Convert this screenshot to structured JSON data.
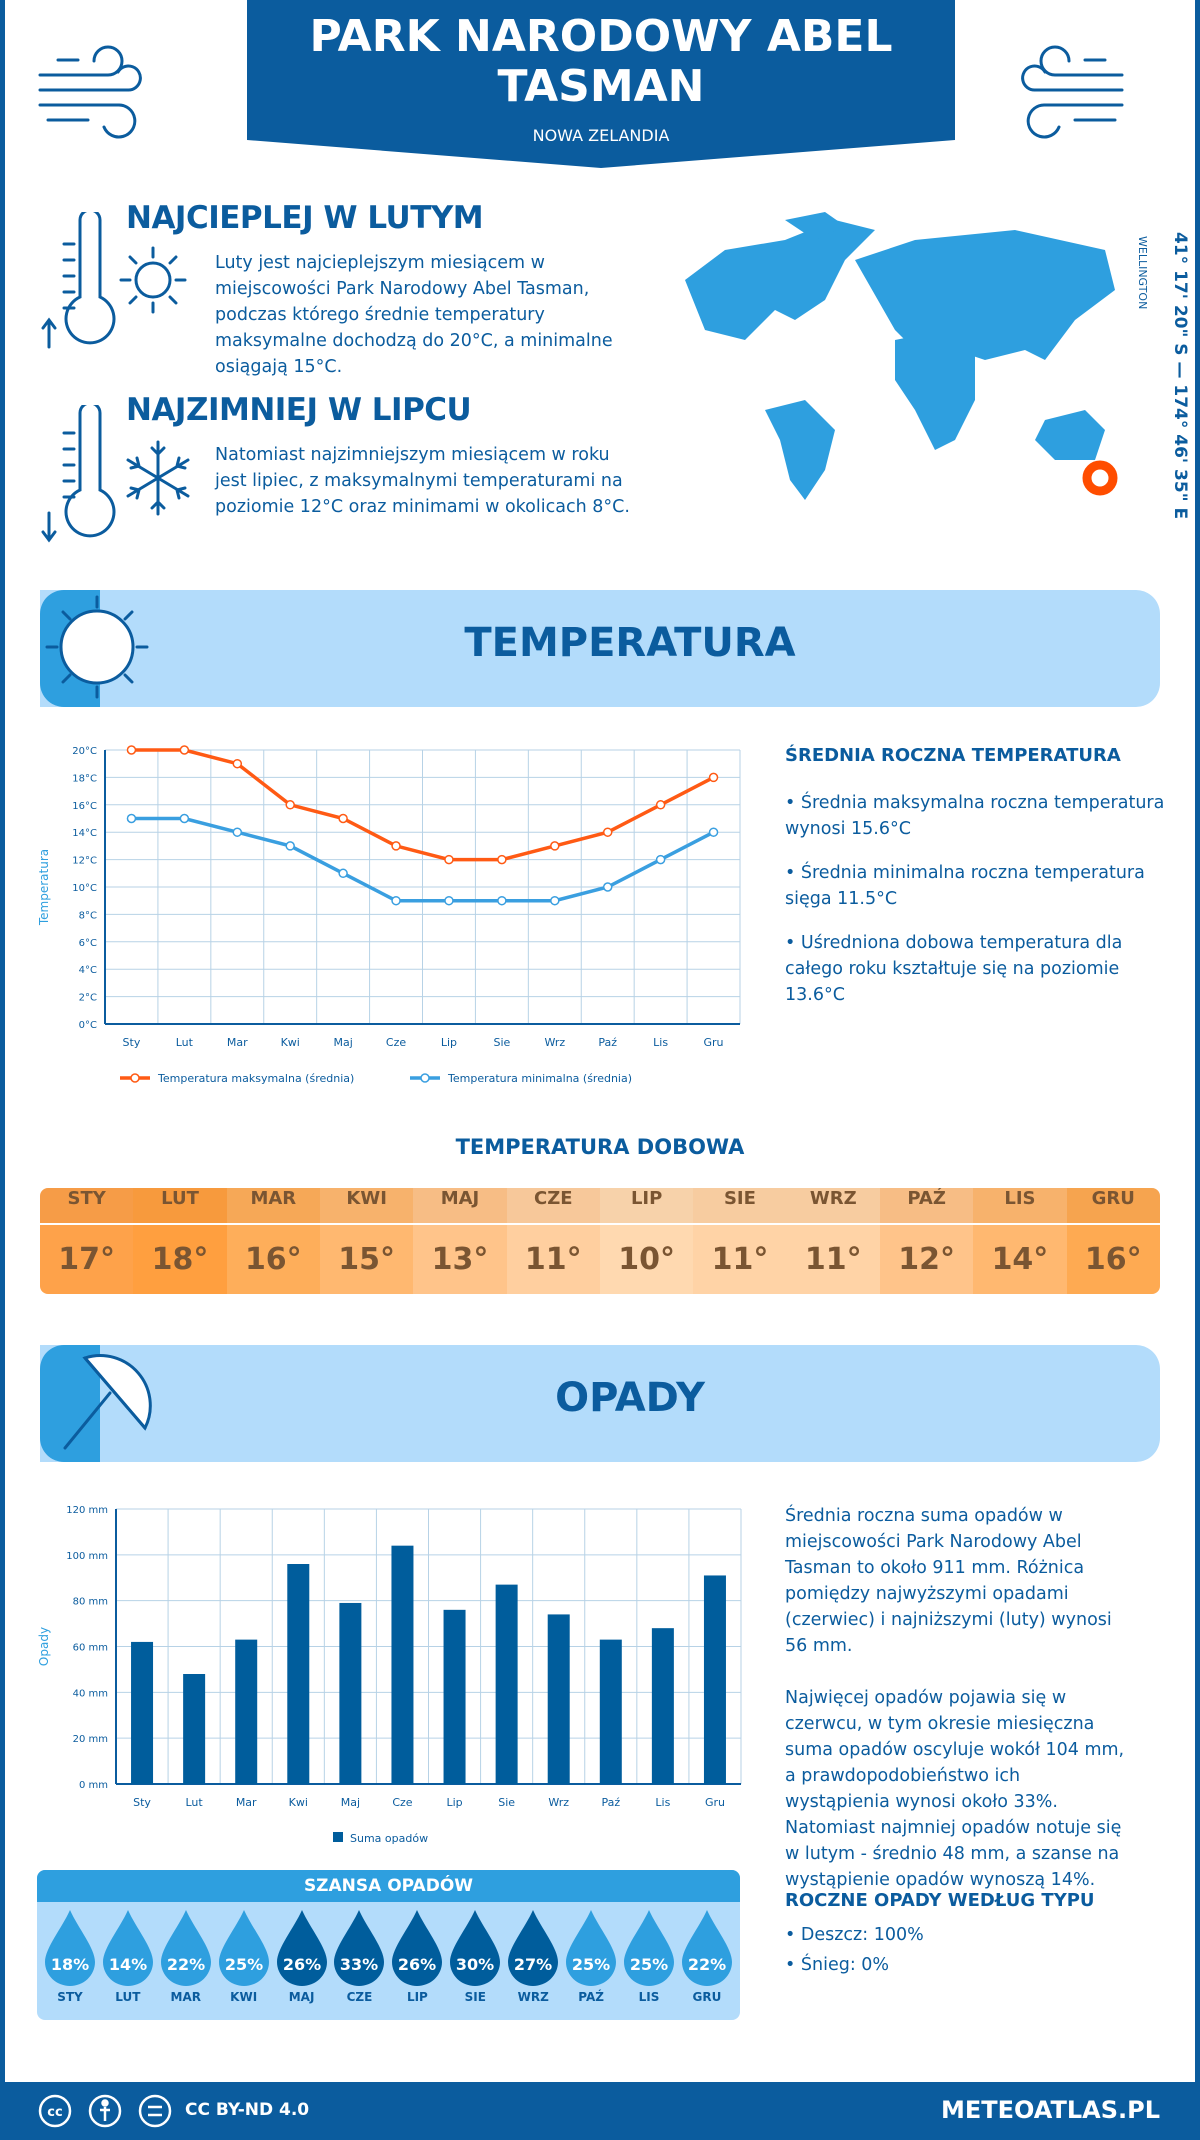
{
  "header": {
    "title": "PARK NARODOWY ABEL TASMAN",
    "subtitle": "NOWA ZELANDIA"
  },
  "warmest": {
    "heading": "NAJCIEPLEJ W LUTYM",
    "text": "Luty jest najcieplejszym miesiącem w miejscowości Park Narodowy Abel Tasman, podczas którego średnie temperatury maksymalne dochodzą do 20°C, a minimalne osiągają 15°C."
  },
  "coldest": {
    "heading": "NAJZIMNIEJ W LIPCU",
    "text": "Natomiast najzimniejszym miesiącem w roku jest lipiec, z maksymalnymi temperaturami na poziomie 12°C oraz minimami w okolicach 8°C."
  },
  "map": {
    "coordinates": "41° 17' 20\" S — 174° 46' 35\" E",
    "city": "WELLINGTON",
    "marker_color": "#ff4d00"
  },
  "temperature": {
    "band_title": "TEMPERATURA",
    "summary_heading": "ŚREDNIA ROCZNA TEMPERATURA",
    "bullets": [
      "• Średnia maksymalna roczna temperatura wynosi 15.6°C",
      "• Średnia minimalna roczna temperatura sięga 11.5°C",
      "• Uśredniona dobowa temperatura dla całego roku kształtuje się na poziomie 13.6°C"
    ],
    "daily_title": "TEMPERATURA DOBOWA",
    "daily_months": [
      "STY",
      "LUT",
      "MAR",
      "KWI",
      "MAJ",
      "CZE",
      "LIP",
      "SIE",
      "WRZ",
      "PAŹ",
      "LIS",
      "GRU"
    ],
    "daily_values": [
      "17°",
      "18°",
      "16°",
      "15°",
      "13°",
      "11°",
      "10°",
      "11°",
      "11°",
      "12°",
      "14°",
      "16°"
    ],
    "daily_colors": [
      "#fea24a",
      "#ff9f3f",
      "#feae5a",
      "#ffb870",
      "#ffc48a",
      "#ffcf9f",
      "#ffd9b0",
      "#ffd3a6",
      "#ffd3a6",
      "#ffc48a",
      "#ffb870",
      "#feaa52"
    ]
  },
  "precipitation": {
    "band_title": "OPADY",
    "text1": "Średnia roczna suma opadów w miejscowości Park Narodowy Abel Tasman to około 911 mm. Różnica pomiędzy najwyższymi opadami (czerwiec) i najniższymi (luty) wynosi 56 mm.",
    "text2": "Najwięcej opadów pojawia się w czerwcu, w tym okresie miesięczna suma opadów oscyluje wokół 104 mm, a prawdopodobieństwo ich wystąpienia wynosi około 33%. Natomiast najmniej opadów notuje się w lutym - średnio 48 mm, a szanse na wystąpienie opadów wynoszą 14%.",
    "type_heading": "ROCZNE OPADY WEDŁUG TYPU",
    "types": [
      "• Deszcz: 100%",
      "• Śnieg: 0%"
    ],
    "chance_title": "SZANSA OPADÓW",
    "chance_months": [
      "STY",
      "LUT",
      "MAR",
      "KWI",
      "MAJ",
      "CZE",
      "LIP",
      "SIE",
      "WRZ",
      "PAŹ",
      "LIS",
      "GRU"
    ],
    "chance_values": [
      "18%",
      "14%",
      "22%",
      "25%",
      "26%",
      "33%",
      "26%",
      "30%",
      "27%",
      "25%",
      "25%",
      "22%"
    ],
    "chance_dark": [
      false,
      false,
      false,
      false,
      true,
      true,
      true,
      true,
      true,
      false,
      false,
      false
    ]
  },
  "footer": {
    "license": "CC BY-ND 4.0",
    "site": "METEOATLAS.PL"
  },
  "chart_data": [
    {
      "type": "line",
      "categories": [
        "Sty",
        "Lut",
        "Mar",
        "Kwi",
        "Maj",
        "Cze",
        "Lip",
        "Sie",
        "Wrz",
        "Paź",
        "Lis",
        "Gru"
      ],
      "series": [
        {
          "name": "Temperatura maksymalna (średnia)",
          "color": "#ff5a14",
          "values": [
            20,
            20,
            19,
            16,
            15,
            13,
            12,
            12,
            13,
            14,
            16,
            18
          ]
        },
        {
          "name": "Temperatura minimalna (średnia)",
          "color": "#3a9fe0",
          "values": [
            15,
            15,
            14,
            13,
            11,
            9,
            9,
            9,
            9,
            10,
            12,
            14
          ]
        }
      ],
      "ylabel": "Temperatura",
      "ylim": [
        0,
        20
      ],
      "yticks": [
        "0°C",
        "2°C",
        "4°C",
        "6°C",
        "8°C",
        "10°C",
        "12°C",
        "14°C",
        "16°C",
        "18°C",
        "20°C"
      ],
      "grid": true,
      "legend": "bottom"
    },
    {
      "type": "bar",
      "categories": [
        "Sty",
        "Lut",
        "Mar",
        "Kwi",
        "Maj",
        "Cze",
        "Lip",
        "Sie",
        "Wrz",
        "Paź",
        "Lis",
        "Gru"
      ],
      "series": [
        {
          "name": "Suma opadów",
          "color": "#005d9c",
          "values": [
            62,
            48,
            63,
            96,
            79,
            104,
            76,
            87,
            74,
            63,
            68,
            91
          ]
        }
      ],
      "ylabel": "Opady",
      "ylim": [
        0,
        120
      ],
      "yticks": [
        "0 mm",
        "20 mm",
        "40 mm",
        "60 mm",
        "80 mm",
        "100 mm",
        "120 mm"
      ],
      "grid": true,
      "legend": "bottom"
    }
  ]
}
